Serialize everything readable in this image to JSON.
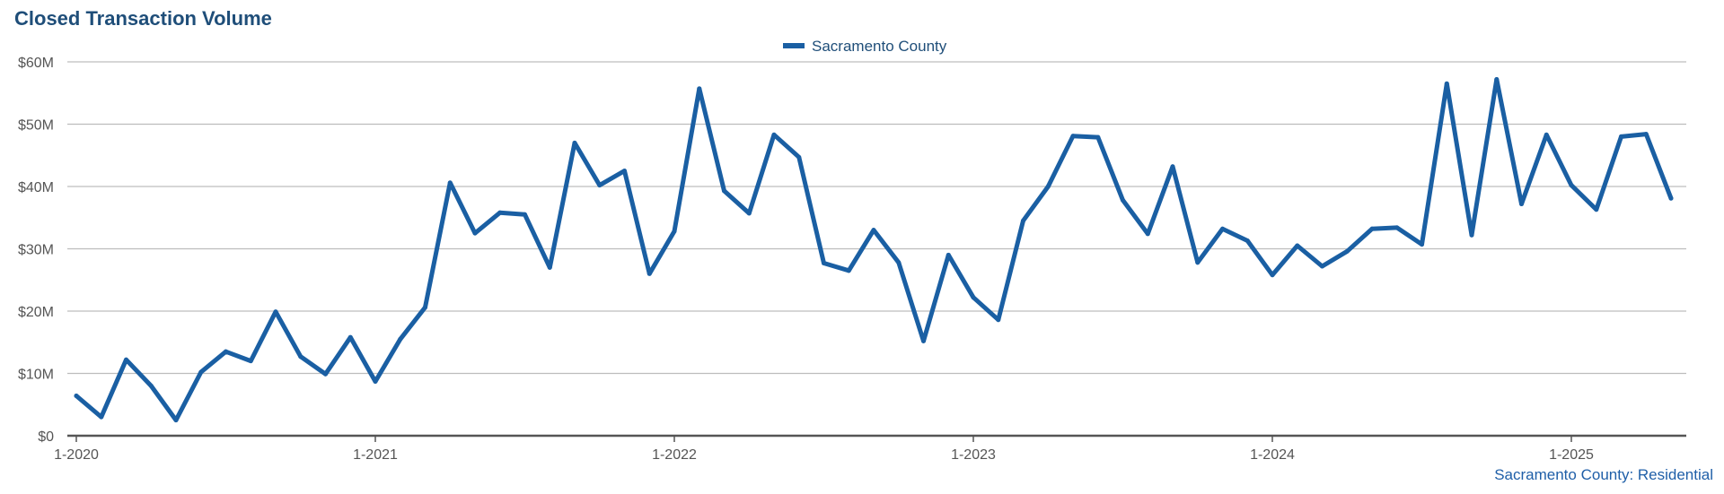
{
  "chart_data": {
    "type": "line",
    "title": "Closed Transaction Volume",
    "footer": "Sacramento County: Residential",
    "legend_position": "top-center",
    "grid": true,
    "ylim": [
      0,
      60000000
    ],
    "y_ticks": [
      0,
      10000000,
      20000000,
      30000000,
      40000000,
      50000000,
      60000000
    ],
    "y_tick_labels": [
      "$0",
      "$10M",
      "$20M",
      "$30M",
      "$40M",
      "$50M",
      "$60M"
    ],
    "x_ticks": [
      "1-2020",
      "1-2021",
      "1-2022",
      "1-2023",
      "1-2024",
      "1-2025"
    ],
    "series": [
      {
        "name": "Sacramento County",
        "color": "#1a5fa3",
        "x": [
          "1-2020",
          "2-2020",
          "3-2020",
          "4-2020",
          "5-2020",
          "6-2020",
          "7-2020",
          "8-2020",
          "9-2020",
          "10-2020",
          "11-2020",
          "12-2020",
          "1-2021",
          "2-2021",
          "3-2021",
          "4-2021",
          "5-2021",
          "6-2021",
          "7-2021",
          "8-2021",
          "9-2021",
          "10-2021",
          "11-2021",
          "12-2021",
          "1-2022",
          "2-2022",
          "3-2022",
          "4-2022",
          "5-2022",
          "6-2022",
          "7-2022",
          "8-2022",
          "9-2022",
          "10-2022",
          "11-2022",
          "12-2022",
          "1-2023",
          "2-2023",
          "3-2023",
          "4-2023",
          "5-2023",
          "6-2023",
          "7-2023",
          "8-2023",
          "9-2023",
          "10-2023",
          "11-2023",
          "12-2023",
          "1-2024",
          "2-2024",
          "3-2024",
          "4-2024",
          "5-2024",
          "6-2024",
          "7-2024",
          "8-2024",
          "9-2024",
          "10-2024",
          "11-2024",
          "12-2024",
          "1-2025",
          "2-2025",
          "3-2025",
          "4-2025",
          "5-2025"
        ],
        "values": [
          6400000,
          3000000,
          12200000,
          8000000,
          2500000,
          10200000,
          13500000,
          12000000,
          19900000,
          12700000,
          9900000,
          15800000,
          8700000,
          15500000,
          20600000,
          40600000,
          32500000,
          35800000,
          35500000,
          27000000,
          47000000,
          40200000,
          42500000,
          26000000,
          32800000,
          55700000,
          39300000,
          35700000,
          48300000,
          44700000,
          27700000,
          26500000,
          33000000,
          27800000,
          15200000,
          29000000,
          22200000,
          18600000,
          34500000,
          40000000,
          48100000,
          47900000,
          37800000,
          32400000,
          43200000,
          27800000,
          33200000,
          31300000,
          25800000,
          30500000,
          27200000,
          29600000,
          33200000,
          33400000,
          30700000,
          56500000,
          32200000,
          57200000,
          37200000,
          48300000,
          40200000,
          36300000,
          48000000,
          48400000,
          38100000
        ]
      }
    ]
  }
}
